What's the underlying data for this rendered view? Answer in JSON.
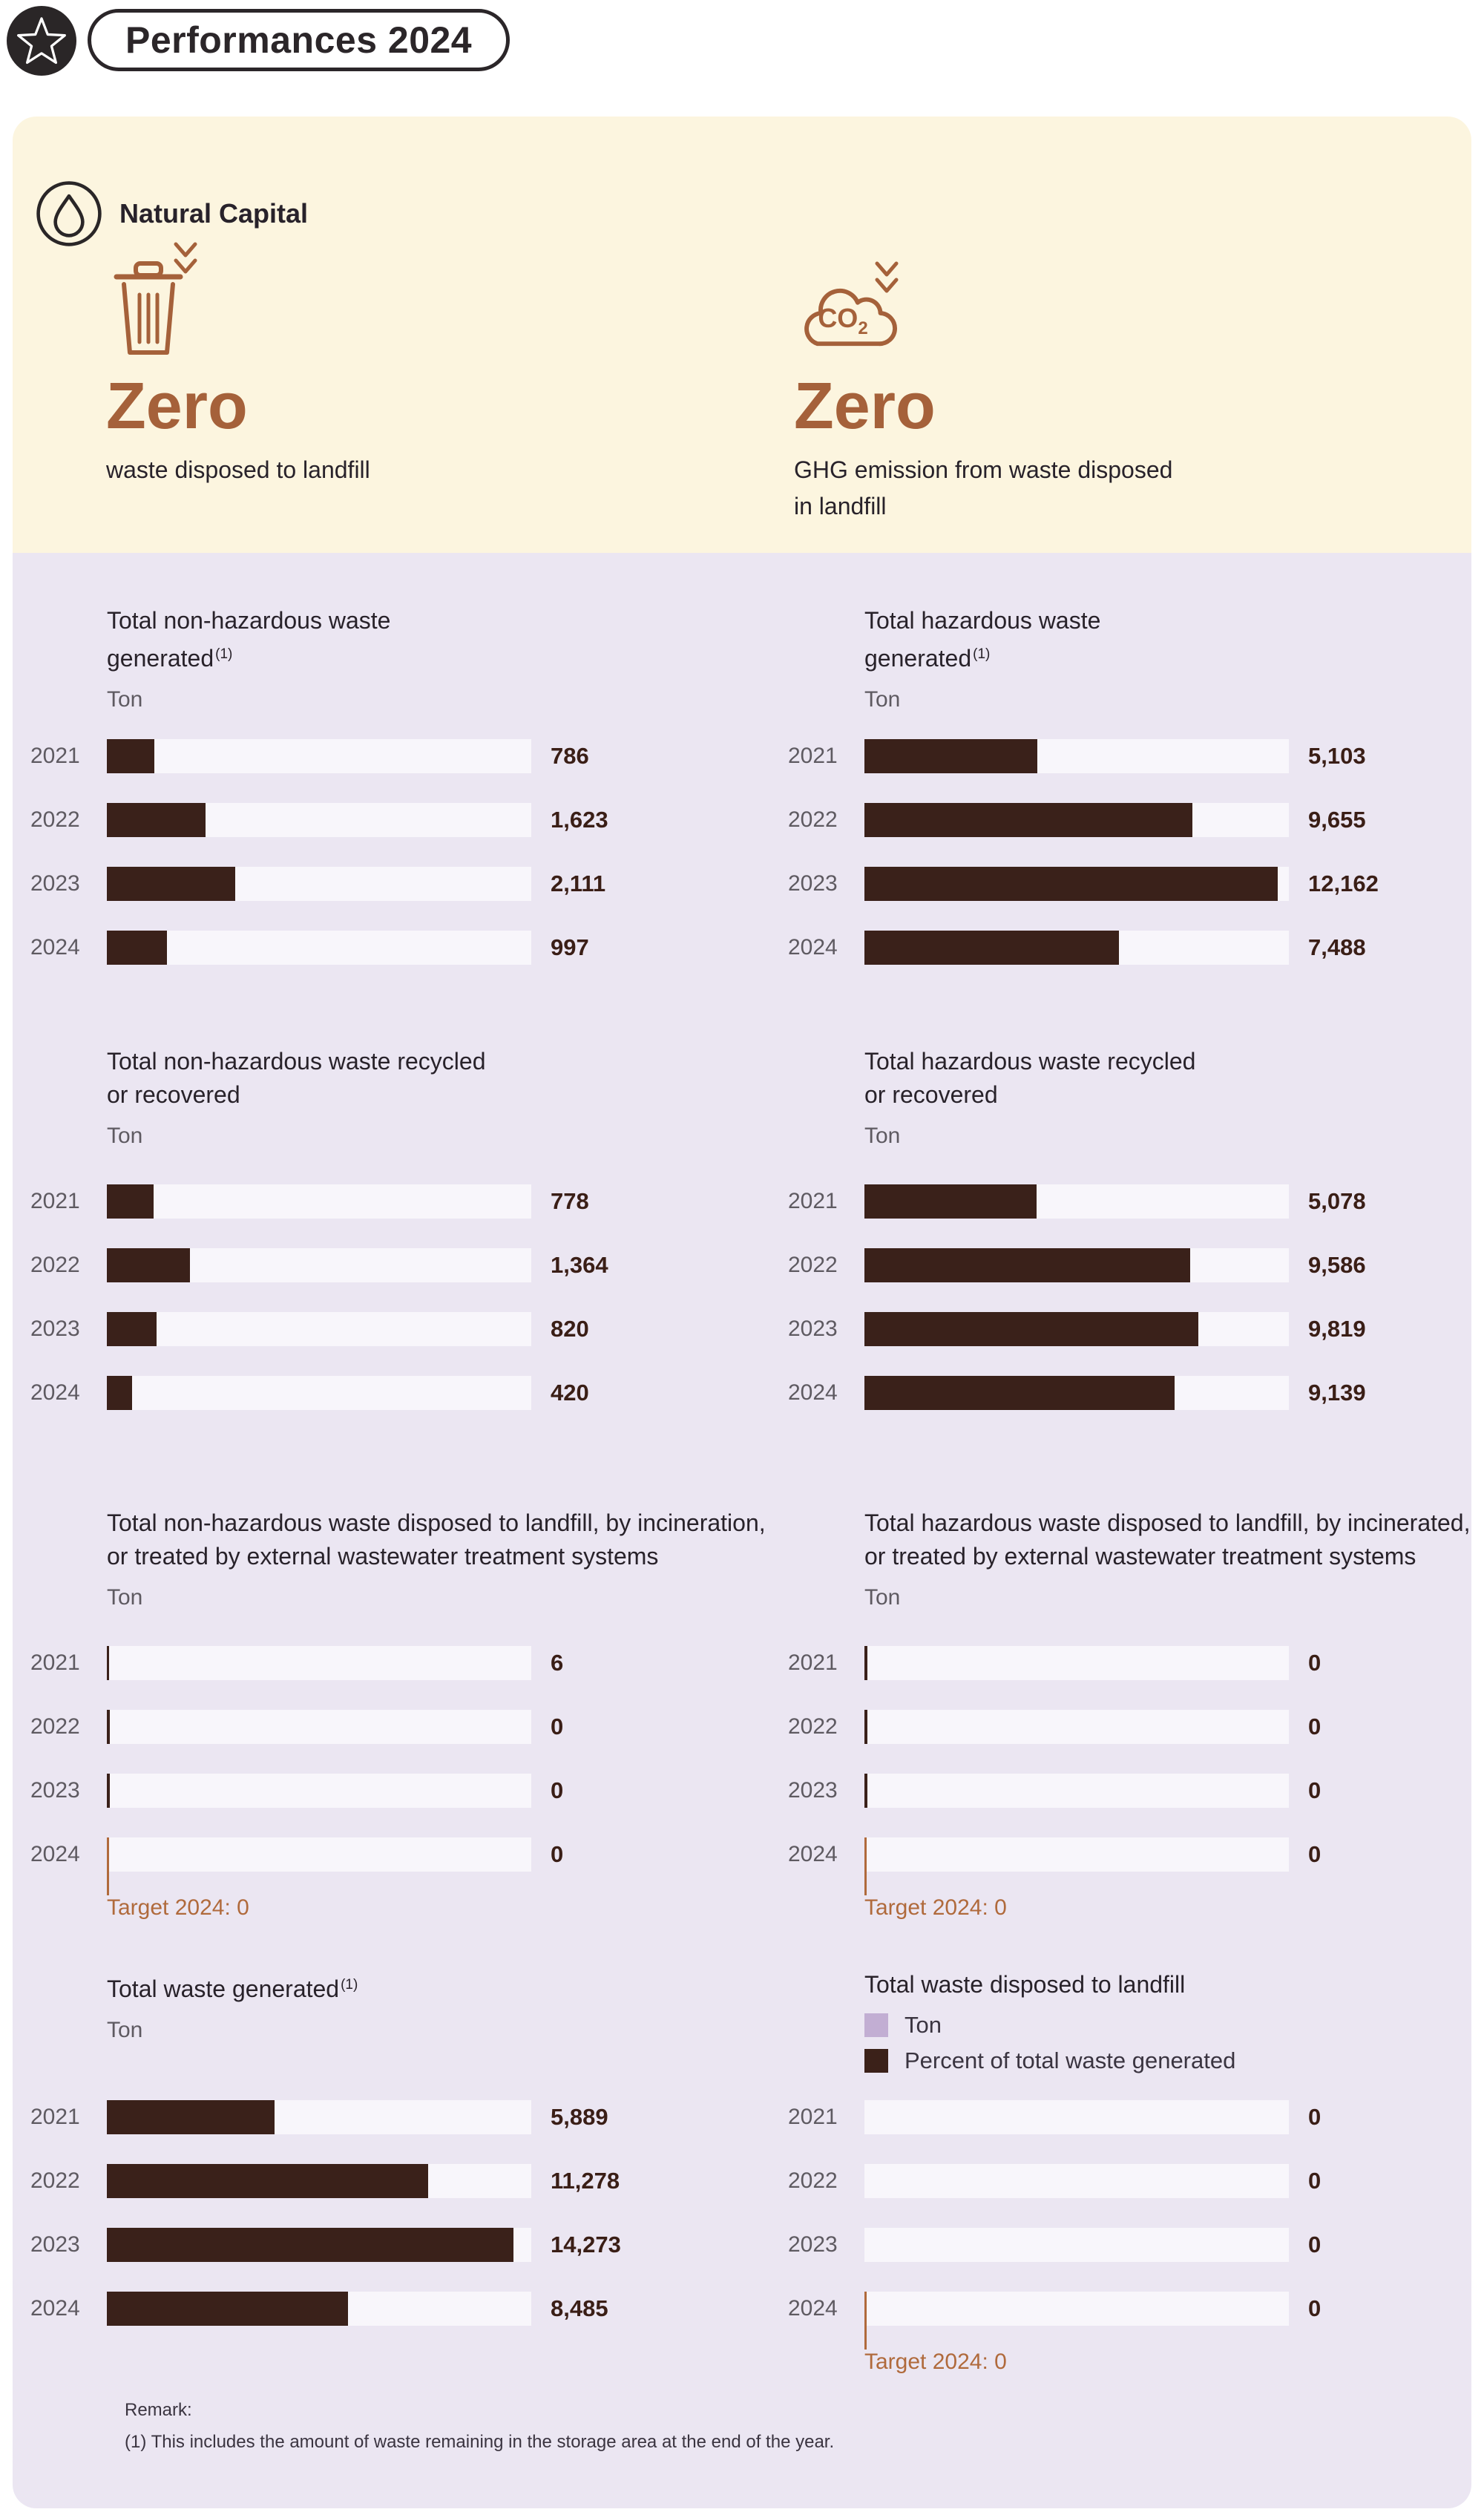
{
  "header": {
    "title": "Performances 2024"
  },
  "natural_capital": {
    "section_label": "Natural Capital",
    "left": {
      "headline": "Zero",
      "caption": "waste disposed to landfill"
    },
    "right": {
      "headline": "Zero",
      "caption_line1": "GHG emission from waste disposed",
      "caption_line2": "in landfill",
      "icon_text_main": "CO",
      "icon_text_sub": "2"
    }
  },
  "remark": {
    "label": "Remark:",
    "note": "(1) This includes the amount of waste remaining in the storage area at the end of the year."
  },
  "colors": {
    "accent_brown": "#A5613A",
    "bar_dark": "#3A211A",
    "target_sienna": "#B06A3C",
    "panel_cream": "#FCF5DF",
    "panel_lavender": "#EBE6F2",
    "bar_track": "#F8F6FB",
    "legend_purple": "#C2AED3",
    "legend_dark": "#3B2119",
    "text_dark": "#28222A",
    "text_gray": "#5E5A61",
    "value_brown": "#3A1E16",
    "logo_dark": "#2A2627"
  },
  "chart_data": [
    {
      "id": "nonhazardous-generated",
      "type": "bar",
      "orientation": "horizontal",
      "title_line1": "Total non-hazardous waste",
      "title_line2": "generated",
      "sup1": null,
      "sup2": "(1)",
      "unit": "Ton",
      "categories": [
        "2021",
        "2022",
        "2023",
        "2024"
      ],
      "values": [
        786,
        1623,
        2111,
        997
      ],
      "value_labels": [
        "786",
        "1,623",
        "2,111",
        "997"
      ],
      "bar_pcts": [
        11.2,
        23.2,
        30.2,
        14.2
      ],
      "scale_max_hint": 7000,
      "target_label": null
    },
    {
      "id": "hazardous-generated",
      "type": "bar",
      "orientation": "horizontal",
      "title_line1": "Total hazardous waste",
      "title_line2": "generated",
      "sup1": null,
      "sup2": "(1)",
      "unit": "Ton",
      "categories": [
        "2021",
        "2022",
        "2023",
        "2024"
      ],
      "values": [
        5103,
        9655,
        12162,
        7488
      ],
      "value_labels": [
        "5,103",
        "9,655",
        "12,162",
        "7,488"
      ],
      "bar_pcts": [
        40.8,
        77.2,
        97.3,
        59.9
      ],
      "scale_max_hint": 12500,
      "target_label": null
    },
    {
      "id": "nonhazardous-recycled",
      "type": "bar",
      "orientation": "horizontal",
      "title_line1": "Total non-hazardous waste recycled",
      "title_line2": "or recovered",
      "sup1": null,
      "sup2": null,
      "unit": "Ton",
      "categories": [
        "2021",
        "2022",
        "2023",
        "2024"
      ],
      "values": [
        778,
        1364,
        820,
        420
      ],
      "value_labels": [
        "778",
        "1,364",
        "820",
        "420"
      ],
      "bar_pcts": [
        11.1,
        19.5,
        11.7,
        6.0
      ],
      "scale_max_hint": 7000,
      "target_label": null
    },
    {
      "id": "hazardous-recycled",
      "type": "bar",
      "orientation": "horizontal",
      "title_line1": "Total hazardous waste recycled",
      "title_line2": "or recovered",
      "sup1": null,
      "sup2": null,
      "unit": "Ton",
      "categories": [
        "2021",
        "2022",
        "2023",
        "2024"
      ],
      "values": [
        5078,
        9586,
        9819,
        9139
      ],
      "value_labels": [
        "5,078",
        "9,586",
        "9,819",
        "9,139"
      ],
      "bar_pcts": [
        40.6,
        76.7,
        78.6,
        73.1
      ],
      "scale_max_hint": 12500,
      "target_label": null
    },
    {
      "id": "nonhazardous-disposed",
      "type": "bar",
      "orientation": "horizontal",
      "title_line1": "Total non-hazardous waste disposed to landfill, by incineration,",
      "title_line2": "or treated by external wastewater treatment systems",
      "sup1": null,
      "sup2": null,
      "unit": "Ton",
      "categories": [
        "2021",
        "2022",
        "2023",
        "2024"
      ],
      "values": [
        6,
        0,
        0,
        0
      ],
      "value_labels": [
        "6",
        "0",
        "0",
        "0"
      ],
      "bar_pcts": [
        0.6,
        0,
        0,
        0
      ],
      "scale_max_hint": 7000,
      "target_label": "Target 2024: 0"
    },
    {
      "id": "hazardous-disposed",
      "type": "bar",
      "orientation": "horizontal",
      "title_line1": "Total hazardous waste disposed to landfill, by incinerated,",
      "title_line2": "or treated by external wastewater treatment systems",
      "sup1": null,
      "sup2": null,
      "unit": "Ton",
      "categories": [
        "2021",
        "2022",
        "2023",
        "2024"
      ],
      "values": [
        0,
        0,
        0,
        0
      ],
      "value_labels": [
        "0",
        "0",
        "0",
        "0"
      ],
      "bar_pcts": [
        0,
        0,
        0,
        0
      ],
      "scale_max_hint": 12500,
      "target_label": "Target 2024: 0"
    },
    {
      "id": "total-generated",
      "type": "bar",
      "orientation": "horizontal",
      "title_line1": "Total waste generated",
      "title_line2": null,
      "sup1": "(1)",
      "sup2": null,
      "unit": "Ton",
      "categories": [
        "2021",
        "2022",
        "2023",
        "2024"
      ],
      "values": [
        5889,
        11278,
        14273,
        8485
      ],
      "value_labels": [
        "5,889",
        "11,278",
        "14,273",
        "8,485"
      ],
      "bar_pcts": [
        39.5,
        75.7,
        95.8,
        56.9
      ],
      "scale_max_hint": 14900,
      "target_label": null
    },
    {
      "id": "total-disposed",
      "type": "bar",
      "orientation": "horizontal",
      "title_line1": "Total waste disposed to landfill",
      "title_line2": null,
      "sup1": null,
      "sup2": null,
      "unit": "Ton",
      "legend": [
        {
          "color": "#C2AED3",
          "label": "Ton"
        },
        {
          "color": "#3B2119",
          "label": "Percent of total waste generated"
        }
      ],
      "categories": [
        "2021",
        "2022",
        "2023",
        "2024"
      ],
      "values": [
        0,
        0,
        0,
        0
      ],
      "value_labels": [
        "0",
        "0",
        "0",
        "0"
      ],
      "bar_pcts": [
        0,
        0,
        0,
        0
      ],
      "scale_max_hint": 12500,
      "target_label": "Target 2024: 0"
    }
  ]
}
